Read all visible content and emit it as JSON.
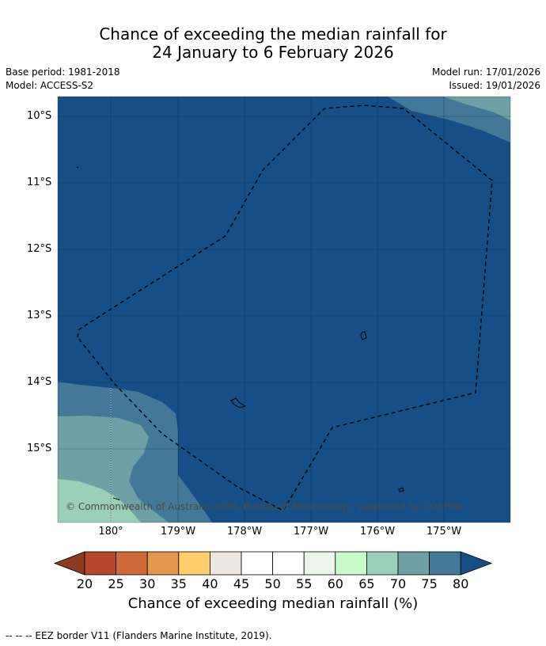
{
  "title_line1": "Chance of exceeding the median rainfall for",
  "title_line2": "24 January to 6 February 2026",
  "base_period": "Base period: 1981-2018",
  "model": "Model: ACCESS-S2",
  "model_run": "Model run: 17/01/2026",
  "issued": "Issued: 19/01/2026",
  "copyright": "© Commonwealth of Australia 2026, Bureau of Meteorology, supported by COSPPac",
  "lat_labels": [
    "10°S",
    "11°S",
    "12°S",
    "13°S",
    "14°S",
    "15°S"
  ],
  "lon_labels": [
    "180°",
    "179°W",
    "178°W",
    "177°W",
    "176°W",
    "175°W"
  ],
  "colorbar": {
    "title": "Chance of exceeding median rainfall (%)",
    "ticks": [
      "20",
      "25",
      "30",
      "35",
      "40",
      "45",
      "50",
      "55",
      "60",
      "65",
      "70",
      "75",
      "80"
    ],
    "colors": [
      "#8c3a22",
      "#b5482a",
      "#cf6a3a",
      "#e3964e",
      "#ffce6c",
      "#ede7e1",
      "#ffffff",
      "#ffffff",
      "#ebf5eb",
      "#c9fbca",
      "#9ccfba",
      "#6ea0a6",
      "#437898",
      "#164f86"
    ]
  },
  "footer": "--  --  -- EEZ border V11 (Flanders Marine Institute, 2019).",
  "fill_colors": {
    "c80": "#164f86",
    "c75": "#437898",
    "c70": "#6ea0a6",
    "c65": "#9ccfba"
  }
}
